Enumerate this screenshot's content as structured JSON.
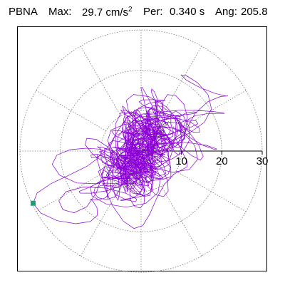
{
  "header": {
    "station": "PBNA",
    "max_label": "Max:",
    "max_value": "29.7 cm/s",
    "max_unit_exp": "2",
    "period_label": "Per:",
    "period_value": "0.340 s",
    "angle_label": "Ang:",
    "angle_value": "205.8"
  },
  "colors": {
    "trace": "#8a00d4",
    "marker": "#17a07a",
    "grid": "#777777",
    "axis": "#000000"
  },
  "chart_data": {
    "type": "scatter",
    "title": "",
    "xlabel": "",
    "ylabel": "",
    "polar": true,
    "grid": true,
    "radial_ticks": [
      10,
      20,
      30
    ],
    "radial_tick_labels": [
      "10",
      "20",
      "30"
    ],
    "rlim": [
      0,
      30
    ],
    "angular_gridlines_deg": [
      0,
      30,
      60,
      90,
      120,
      150,
      180,
      210,
      240,
      270,
      300,
      330
    ],
    "series": [
      {
        "style": "particle-motion trace (approximate)",
        "seed": 7,
        "n_points": 1400,
        "components": [
          {
            "amp_major": 20,
            "amp_minor": 5,
            "cycles": 7,
            "phase": 0.4,
            "envelope": "burst"
          },
          {
            "amp_major": 12,
            "amp_minor": 7,
            "cycles": 23,
            "phase": 1.3,
            "envelope": "mid"
          },
          {
            "amp_major": 6,
            "amp_minor": 5,
            "cycles": 71,
            "phase": 2.1,
            "envelope": "late"
          },
          {
            "amp_major": 4,
            "amp_minor": 4,
            "cycles": 143,
            "phase": 0.9,
            "envelope": "flat"
          }
        ],
        "major_axis_angle_deg": 28
      }
    ],
    "peak_point": {
      "r": 29.7,
      "angle_deg": 205.8
    }
  }
}
